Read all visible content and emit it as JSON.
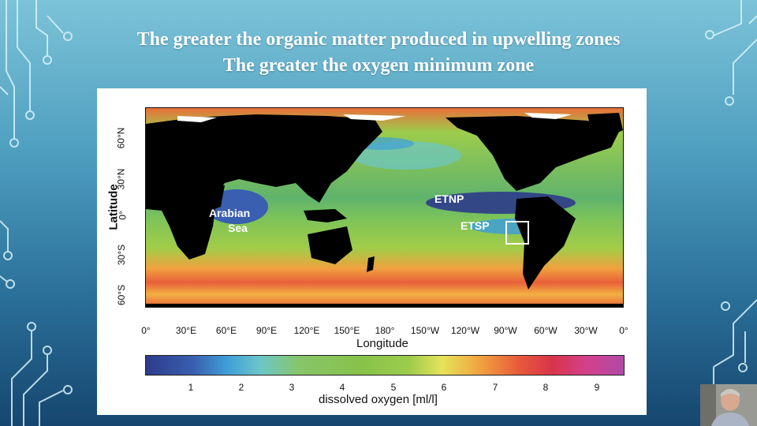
{
  "slide": {
    "title_line1": "The greater the organic matter produced in upwelling zones",
    "title_line2": "The greater the oxygen minimum zone"
  },
  "figure": {
    "map_labels": {
      "arabian": "Arabian",
      "sea": "Sea",
      "etnp": "ETNP",
      "etsp": "ETSP"
    },
    "latitude_ticks": [
      "60°N",
      "30°N",
      "0°",
      "30°S",
      "60°S"
    ],
    "longitude_ticks": [
      "0°",
      "30°E",
      "60°E",
      "90°E",
      "120°E",
      "150°E",
      "180°",
      "150°W",
      "120°W",
      "90°W",
      "60°W",
      "30°W",
      "0°"
    ],
    "ylabel": "Latitude",
    "xlabel": "Longitude",
    "colorbar": {
      "ticks": [
        "1",
        "2",
        "3",
        "4",
        "5",
        "6",
        "7",
        "8",
        "9"
      ],
      "label": "dissolved oxygen [ml/l]"
    }
  },
  "colors": {
    "land": "#000000",
    "accent_white": "#ffffff",
    "background_top": "#7cc3d8",
    "background_bottom": "#16466f"
  },
  "icons": [
    "circuit-left-decoration",
    "circuit-right-decoration",
    "presenter-webcam"
  ]
}
